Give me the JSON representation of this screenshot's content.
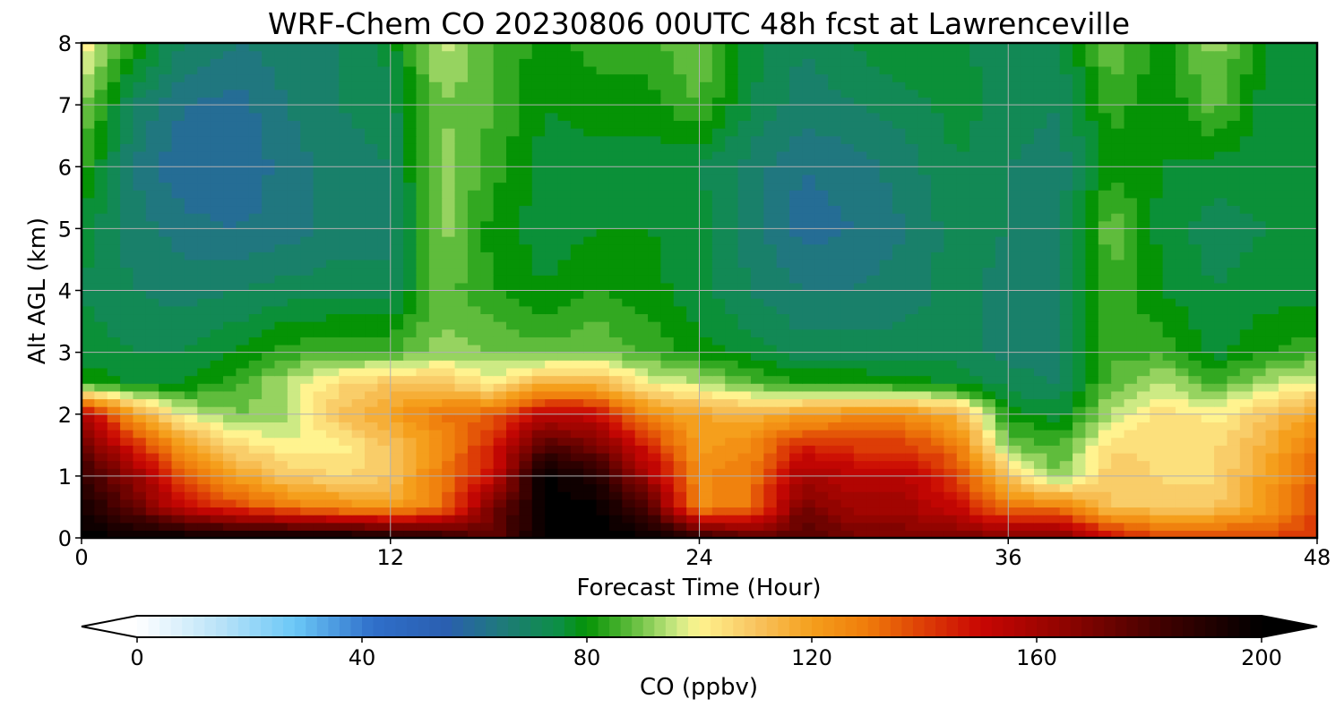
{
  "chart_data": {
    "type": "heatmap",
    "title": "WRF-Chem CO  20230806 00UTC 48h fcst at Lawrenceville",
    "xlabel": "Forecast Time (Hour)",
    "ylabel": "Alt AGL (km)",
    "xlim": [
      0,
      48
    ],
    "ylim": [
      0,
      8
    ],
    "grid": true,
    "x_ticks": [
      "0",
      "12",
      "24",
      "36",
      "48"
    ],
    "y_ticks": [
      "0",
      "1",
      "2",
      "3",
      "4",
      "5",
      "6",
      "7",
      "8"
    ],
    "x_tick_values": [
      0,
      12,
      24,
      36,
      48
    ],
    "y_tick_values": [
      0,
      1,
      2,
      3,
      4,
      5,
      6,
      7,
      8
    ],
    "x_hours": [
      0,
      2,
      4,
      6,
      8,
      10,
      12,
      14,
      16,
      18,
      20,
      22,
      24,
      26,
      28,
      30,
      32,
      34,
      36,
      38,
      40,
      42,
      44,
      46,
      48
    ],
    "z_km": [
      0,
      0.5,
      1,
      1.5,
      2,
      2.5,
      3,
      4,
      5,
      6,
      7,
      8
    ],
    "co_ppbv": [
      [
        200,
        200,
        200,
        200,
        200,
        200,
        195,
        190,
        175,
        200,
        200,
        200,
        190,
        175,
        180,
        170,
        170,
        170,
        170,
        170,
        150,
        140,
        140,
        140,
        140
      ],
      [
        195,
        175,
        150,
        140,
        130,
        125,
        120,
        130,
        170,
        200,
        200,
        180,
        125,
        130,
        170,
        160,
        160,
        150,
        130,
        130,
        110,
        110,
        110,
        120,
        140
      ],
      [
        185,
        165,
        135,
        120,
        110,
        105,
        110,
        130,
        150,
        200,
        190,
        160,
        125,
        130,
        160,
        155,
        155,
        140,
        110,
        90,
        110,
        105,
        105,
        120,
        135
      ],
      [
        175,
        145,
        120,
        105,
        100,
        100,
        110,
        125,
        145,
        180,
        170,
        145,
        120,
        125,
        145,
        140,
        140,
        130,
        90,
        85,
        105,
        105,
        105,
        115,
        130
      ],
      [
        160,
        120,
        98,
        90,
        92,
        110,
        120,
        130,
        135,
        155,
        150,
        125,
        118,
        115,
        120,
        125,
        125,
        115,
        80,
        76,
        95,
        105,
        100,
        110,
        120
      ],
      [
        82,
        78,
        78,
        85,
        95,
        105,
        110,
        110,
        100,
        115,
        115,
        100,
        95,
        88,
        82,
        82,
        80,
        78,
        72,
        70,
        88,
        95,
        85,
        95,
        100
      ],
      [
        76,
        74,
        74,
        78,
        84,
        86,
        86,
        92,
        90,
        88,
        90,
        85,
        80,
        76,
        72,
        72,
        72,
        72,
        68,
        68,
        85,
        85,
        76,
        82,
        85
      ],
      [
        74,
        70,
        68,
        70,
        72,
        72,
        72,
        88,
        82,
        78,
        82,
        80,
        75,
        70,
        66,
        66,
        68,
        72,
        68,
        68,
        85,
        78,
        74,
        76,
        76
      ],
      [
        76,
        68,
        64,
        62,
        64,
        68,
        68,
        92,
        80,
        76,
        78,
        78,
        76,
        68,
        60,
        62,
        66,
        72,
        70,
        68,
        90,
        76,
        72,
        74,
        74
      ],
      [
        84,
        66,
        58,
        58,
        64,
        68,
        70,
        92,
        84,
        76,
        76,
        76,
        74,
        68,
        62,
        64,
        68,
        74,
        70,
        68,
        80,
        78,
        76,
        76,
        76
      ],
      [
        92,
        70,
        62,
        60,
        66,
        70,
        72,
        90,
        86,
        78,
        80,
        80,
        86,
        74,
        68,
        70,
        72,
        76,
        72,
        70,
        84,
        78,
        88,
        76,
        74
      ],
      [
        102,
        82,
        70,
        66,
        68,
        70,
        76,
        96,
        86,
        80,
        84,
        84,
        90,
        76,
        70,
        74,
        78,
        76,
        70,
        74,
        90,
        80,
        92,
        78,
        74
      ]
    ],
    "colorbar": {
      "label": "CO  (ppbv)",
      "ticks": [
        "0",
        "40",
        "80",
        "120",
        "160",
        "200"
      ],
      "tick_values": [
        0,
        40,
        80,
        120,
        160,
        200
      ],
      "range": [
        0,
        200
      ],
      "extend": "both",
      "colormap": [
        [
          0,
          "#ffffff"
        ],
        [
          15,
          "#b8e2f8"
        ],
        [
          28,
          "#6bc8f7"
        ],
        [
          42,
          "#2f6fca"
        ],
        [
          55,
          "#2a5fb0"
        ],
        [
          65,
          "#1f7a7a"
        ],
        [
          75,
          "#0c8f45"
        ],
        [
          80,
          "#059305"
        ],
        [
          88,
          "#5fbc3c"
        ],
        [
          96,
          "#cdea84"
        ],
        [
          100,
          "#fff38f"
        ],
        [
          110,
          "#f8c460"
        ],
        [
          120,
          "#f59f1c"
        ],
        [
          130,
          "#ef7b0a"
        ],
        [
          140,
          "#dd3d06"
        ],
        [
          150,
          "#c90603"
        ],
        [
          165,
          "#8f0400"
        ],
        [
          182,
          "#420100"
        ],
        [
          200,
          "#000000"
        ]
      ]
    }
  }
}
